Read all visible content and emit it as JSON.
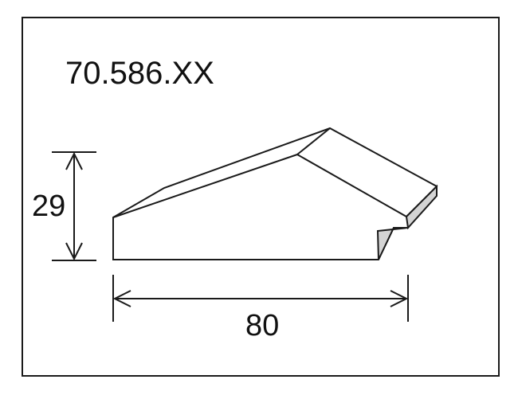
{
  "product_code": "70.586.XX",
  "dimensions": {
    "height": "29",
    "width": "80"
  },
  "colors": {
    "stroke": "#1a1a1a",
    "face_shade": "#d4d4d4",
    "background": "#ffffff"
  }
}
